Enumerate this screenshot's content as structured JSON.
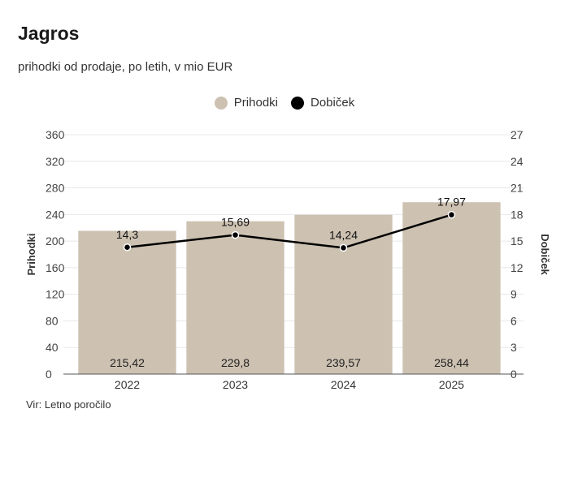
{
  "title": "Jagros",
  "subtitle": "prihodki od prodaje, po letih, v mio EUR",
  "source": "Vir: Letno poročilo",
  "colors": {
    "bar": "#cdc1b1",
    "line": "#000000",
    "grid": "#e8e8e8",
    "axis": "#555555"
  },
  "legend": [
    {
      "label": "Prihodki",
      "color": "#cdc1b1"
    },
    {
      "label": "Dobiček",
      "color": "#000000"
    }
  ],
  "chart_data": {
    "type": "bar",
    "categories": [
      "2022",
      "2023",
      "2024",
      "2025"
    ],
    "series": [
      {
        "name": "Prihodki",
        "type": "bar",
        "axis": "left",
        "values": [
          215.42,
          229.8,
          239.57,
          258.44
        ],
        "labels": [
          "215,42",
          "229,8",
          "239,57",
          "258,44"
        ]
      },
      {
        "name": "Dobiček",
        "type": "line",
        "axis": "right",
        "values": [
          14.3,
          15.69,
          14.24,
          17.97
        ],
        "labels": [
          "14,3",
          "15,69",
          "14,24",
          "17,97"
        ]
      }
    ],
    "y_left": {
      "label": "Prihodki",
      "min": 0,
      "max": 360,
      "ticks": [
        "0",
        "40",
        "80",
        "120",
        "160",
        "200",
        "240",
        "280",
        "320",
        "360"
      ]
    },
    "y_right": {
      "label": "Dobiček",
      "min": 0,
      "max": 27,
      "ticks": [
        "0",
        "3",
        "6",
        "9",
        "12",
        "15",
        "18",
        "21",
        "24",
        "27"
      ]
    },
    "grid": true,
    "legend_position": "top-center"
  }
}
